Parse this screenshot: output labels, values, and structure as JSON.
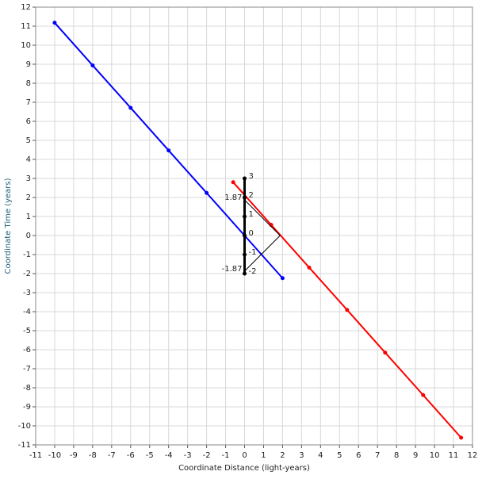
{
  "chart_data": {
    "type": "line",
    "xlabel": "Coordinate Distance (light-years)",
    "ylabel": "Coordinate Time (years)",
    "xlim": [
      -11,
      12
    ],
    "ylim": [
      -11,
      12
    ],
    "xticks": [
      -11,
      -10,
      -9,
      -8,
      -7,
      -6,
      -5,
      -4,
      -3,
      -2,
      -1,
      0,
      1,
      2,
      3,
      4,
      5,
      6,
      7,
      8,
      9,
      10,
      11,
      12
    ],
    "yticks": [
      -11,
      -10,
      -9,
      -8,
      -7,
      -6,
      -5,
      -4,
      -3,
      -2,
      -1,
      0,
      1,
      2,
      3,
      4,
      5,
      6,
      7,
      8,
      9,
      10,
      11,
      12
    ],
    "grid": true,
    "series": [
      {
        "color": "#0000ff",
        "width": 2,
        "x": [
          -10,
          -8,
          -6,
          -4,
          -2,
          0,
          2
        ],
        "values": [
          11.18,
          8.94,
          6.71,
          4.47,
          2.24,
          0,
          -2.24
        ],
        "point_labels": false
      },
      {
        "color": "#ff0000",
        "width": 2,
        "x": [
          -0.6,
          1.4,
          3.4,
          5.4,
          7.4,
          9.4,
          11.4
        ],
        "values": [
          2.8,
          0.56,
          -1.68,
          -3.91,
          -6.15,
          -8.38,
          -10.62
        ],
        "point_labels": false
      },
      {
        "color": "#000000",
        "width": 1,
        "x": [
          0,
          1.87,
          0
        ],
        "values": [
          1.87,
          0,
          -1.87
        ],
        "point_labels": false
      },
      {
        "color": "#000000",
        "width": 3,
        "x": [
          0,
          0,
          0,
          0,
          0,
          0
        ],
        "values": [
          -2,
          -1,
          0,
          1,
          2,
          3
        ],
        "point_labels": true
      }
    ],
    "annotations": [
      {
        "text": "1.87",
        "x": 0,
        "y": 1.87
      },
      {
        "text": "-1.87",
        "x": 0,
        "y": -1.87
      }
    ]
  }
}
